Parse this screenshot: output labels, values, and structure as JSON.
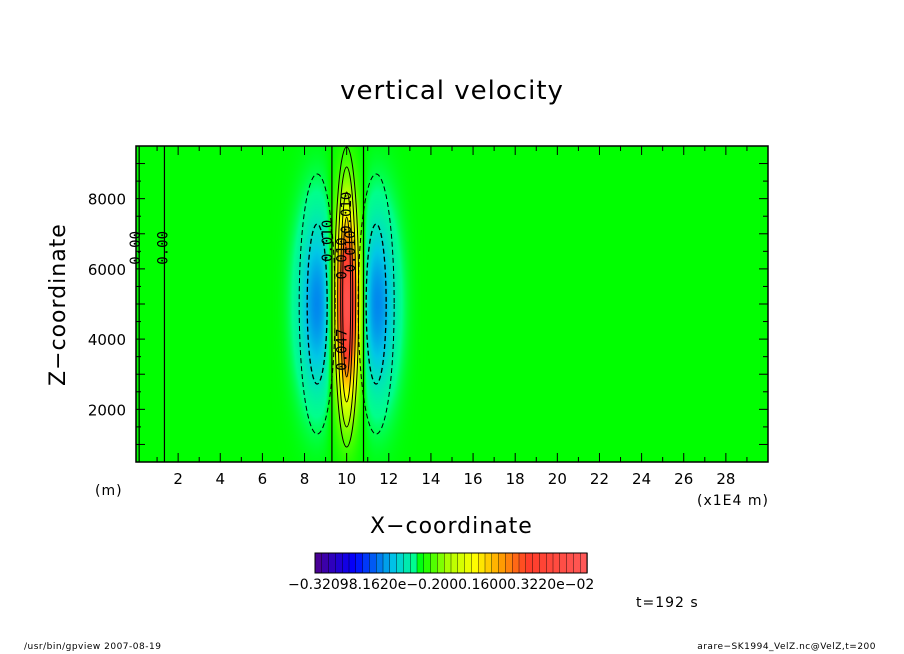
{
  "chart_data": {
    "type": "contour",
    "title": "vertical velocity",
    "xlabel": "X−coordinate",
    "ylabel": "Z−coordinate",
    "x_unit_left": "(m)",
    "x_unit_right": "(x1E4 m)",
    "xlim": [
      0,
      30
    ],
    "ylim": [
      500,
      9500
    ],
    "x_ticks": [
      2,
      4,
      6,
      8,
      10,
      12,
      14,
      16,
      18,
      20,
      22,
      24,
      26,
      28
    ],
    "y_ticks": [
      2000,
      4000,
      6000,
      8000
    ],
    "contour_labels": [
      "0.00",
      "0.00",
      "0.010",
      "0.010",
      "0.010",
      "0.010",
      "0.047"
    ],
    "colorbar_label": "−0.32098.1620e−0.2000.16000.3220e−02",
    "time_label": "t=192 s"
  },
  "footer": {
    "left": "/usr/bin/gpview   2007-08-19",
    "right": "arare−SK1994_VelZ.nc@VelZ,t=200"
  },
  "colors": {
    "background_field": "#00ff00",
    "peak": "#ff3030"
  }
}
